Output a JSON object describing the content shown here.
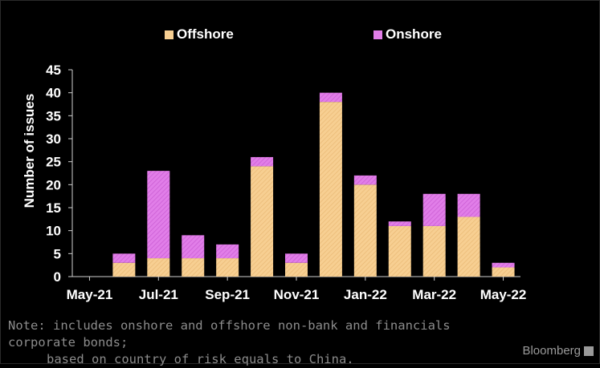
{
  "chart_data": {
    "type": "bar",
    "stacked": true,
    "categories": [
      "May-21",
      "Jun-21",
      "Jul-21",
      "Aug-21",
      "Sep-21",
      "Oct-21",
      "Nov-21",
      "Dec-21",
      "Jan-22",
      "Feb-22",
      "Mar-22",
      "Apr-22",
      "May-22"
    ],
    "x_tick_labels": [
      "May-21",
      "Jul-21",
      "Sep-21",
      "Nov-21",
      "Jan-22",
      "Mar-22",
      "May-22"
    ],
    "series": [
      {
        "name": "Offshore",
        "values": [
          0,
          3,
          4,
          4,
          4,
          24,
          3,
          38,
          20,
          11,
          11,
          13,
          2
        ],
        "color": "#f7cf92"
      },
      {
        "name": "Onshore",
        "values": [
          0,
          2,
          19,
          5,
          3,
          2,
          2,
          2,
          2,
          1,
          7,
          5,
          1
        ],
        "color": "#e17ee8"
      }
    ],
    "ylabel": "Number of issues",
    "ylim": [
      0,
      45
    ],
    "yticks": [
      0,
      5,
      10,
      15,
      20,
      25,
      30,
      35,
      40,
      45
    ],
    "legend_position": "top",
    "grid": false
  },
  "note": {
    "line1": "Note: includes onshore and offshore non-bank and financials corporate bonds;",
    "line2": "based on country of risk equals to China."
  },
  "brand": "Bloomberg"
}
